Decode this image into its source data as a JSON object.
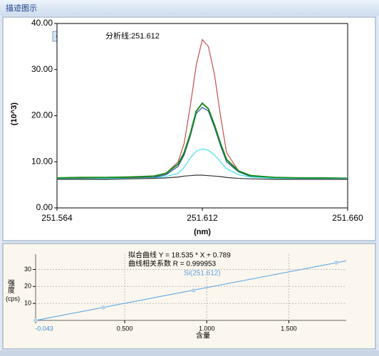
{
  "window": {
    "title": "描迹图示"
  },
  "chart_data": [
    {
      "type": "line",
      "annotation": "分析线:251.612",
      "ylabel": "(10^3)",
      "xlabel": "(nm)",
      "x": [
        251.564,
        251.572,
        251.58,
        251.588,
        251.596,
        251.6,
        251.604,
        251.606,
        251.608,
        251.61,
        251.612,
        251.614,
        251.616,
        251.618,
        251.62,
        251.624,
        251.628,
        251.636,
        251.644,
        251.652,
        251.66
      ],
      "series": [
        {
          "color": "#c0504d",
          "values": [
            6.3,
            6.4,
            6.4,
            6.5,
            6.8,
            7.5,
            10,
            14,
            22,
            31,
            36.5,
            35,
            29,
            20,
            12,
            8,
            7,
            6.6,
            6.5,
            6.4,
            6.4
          ]
        },
        {
          "color": "#1f4e9c",
          "values": [
            6.2,
            6.3,
            6.3,
            6.4,
            6.6,
            7.2,
            9,
            11.5,
            15.5,
            20.5,
            21.8,
            21,
            17.5,
            13.5,
            10,
            7.8,
            6.8,
            6.4,
            6.3,
            6.3,
            6.3
          ]
        },
        {
          "color": "#1a8a1a",
          "values": [
            6.5,
            6.6,
            6.6,
            6.7,
            6.9,
            7.5,
            9.5,
            12,
            16,
            21,
            22.7,
            21.5,
            18,
            14,
            10.5,
            8,
            7,
            6.6,
            6.5,
            6.5,
            6.4
          ]
        },
        {
          "color": "#40e0e8",
          "values": [
            6.3,
            6.3,
            6.4,
            6.4,
            6.5,
            6.8,
            7.5,
            8.8,
            10.8,
            12.3,
            12.8,
            12.5,
            11.5,
            10,
            8.5,
            7.2,
            6.7,
            6.4,
            6.3,
            6.3,
            6.3
          ]
        },
        {
          "color": "#333333",
          "values": [
            6.2,
            6.2,
            6.2,
            6.3,
            6.4,
            6.5,
            6.7,
            6.9,
            7.0,
            7.1,
            7.1,
            7.0,
            6.9,
            6.8,
            6.6,
            6.4,
            6.3,
            6.2,
            6.2,
            6.2,
            6.2
          ]
        }
      ],
      "xlim": [
        251.564,
        251.66
      ],
      "xticks": [
        251.564,
        251.612,
        {
          "value": 251.66,
          "label": "251.660"
        }
      ],
      "ylim": [
        0,
        40
      ],
      "yticks": [
        {
          "value": 0,
          "label": "0.00"
        },
        {
          "value": 10,
          "label": "10.00"
        },
        {
          "value": 20,
          "label": "20.00"
        },
        {
          "value": 30,
          "label": "30.00"
        },
        {
          "value": 40,
          "label": "40.00"
        }
      ],
      "grid": false
    },
    {
      "type": "scatter",
      "title_lines": [
        "拟合曲线  Y = 18.535 * X + 0.789",
        "曲线相关系数  R = 0.999953"
      ],
      "annotation": "Si(251.612)",
      "ylabel": "强度",
      "ylabel_unit": "(cps)",
      "xlabel": "含量",
      "series": [
        {
          "color": "#6aaee6",
          "markers": false,
          "x": [
            -0.043,
            1.85
          ],
          "values": [
            0.0,
            35.08
          ]
        },
        {
          "color": "#b8d4ea",
          "markers": true,
          "line": false,
          "x": [
            -0.043,
            0.37,
            0.92,
            1.79
          ],
          "values": [
            0.0,
            7.6,
            17.6,
            34.0
          ]
        }
      ],
      "xlim": [
        -0.043,
        1.85
      ],
      "xticks": [
        -0.043,
        {
          "value": 0.5,
          "label": "0.500"
        },
        {
          "value": 1,
          "label": "1.000"
        },
        {
          "value": 1.5,
          "label": "1.500"
        }
      ],
      "ylim": [
        0,
        39
      ],
      "yticks": [
        10,
        20,
        30
      ],
      "grid": true
    }
  ]
}
